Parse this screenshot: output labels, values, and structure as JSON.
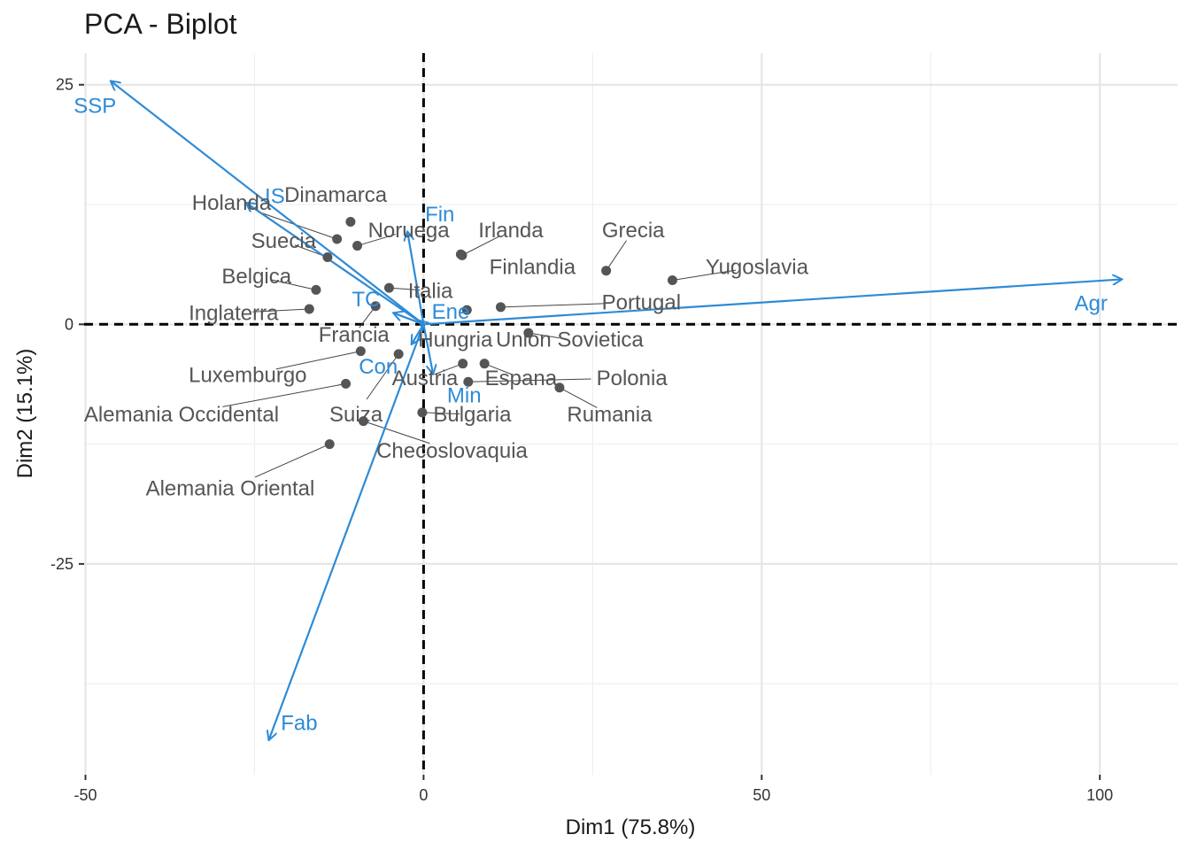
{
  "chart_data": {
    "type": "scatter",
    "title": "PCA - Biplot",
    "xlabel": "Dim1 (75.8%)",
    "ylabel": "Dim2 (15.1%)",
    "xlim": [
      -50.2,
      111.5
    ],
    "ylim": [
      -47.0,
      28.3
    ],
    "x_ticks": [
      -50,
      0,
      50,
      100
    ],
    "x_tick_labels": [
      "-50",
      "0",
      "50",
      "100"
    ],
    "y_ticks": [
      -25,
      0,
      25
    ],
    "y_tick_labels": [
      "-25",
      "0",
      "25"
    ],
    "grid": true,
    "reference_lines": {
      "x": 0,
      "y": 0,
      "style": "dashed"
    },
    "colors": {
      "individuals": "#555555",
      "variables": "#2E8BD6",
      "grid": "#e6e6e6"
    },
    "individuals": [
      {
        "name": "Dinamarca",
        "x": -10.8,
        "y": 10.7,
        "label_x": -13.0,
        "label_y": 13.5,
        "anchor": "middle"
      },
      {
        "name": "Noruega",
        "x": -9.8,
        "y": 8.2,
        "label_x": -2.2,
        "label_y": 9.8,
        "anchor": "middle"
      },
      {
        "name": "Irlanda",
        "x": 5.7,
        "y": 7.2,
        "label_x": 12.9,
        "label_y": 9.8,
        "anchor": "middle"
      },
      {
        "name": "Grecia",
        "x": 27.0,
        "y": 5.6,
        "label_x": 31.0,
        "label_y": 9.8,
        "anchor": "middle"
      },
      {
        "name": "Holanda",
        "x": -12.8,
        "y": 8.9,
        "label_x": -28.4,
        "label_y": 12.7,
        "anchor": "middle"
      },
      {
        "name": "Suecia",
        "x": -14.2,
        "y": 7.0,
        "label_x": -20.7,
        "label_y": 8.7,
        "anchor": "middle"
      },
      {
        "name": "Finlandia",
        "x": null,
        "y": null,
        "label_x": 16.1,
        "label_y": 6.0,
        "anchor": "middle"
      },
      {
        "name": "Yugoslavia",
        "x": 36.8,
        "y": 4.6,
        "label_x": 49.3,
        "label_y": 6.0,
        "anchor": "middle"
      },
      {
        "name": "Belgica",
        "x": -15.9,
        "y": 3.6,
        "label_x": -24.7,
        "label_y": 5.0,
        "anchor": "middle"
      },
      {
        "name": "Italia",
        "x": -5.1,
        "y": 3.8,
        "label_x": 1.0,
        "label_y": 3.5,
        "anchor": "middle"
      },
      {
        "name": "Portugal",
        "x": 11.4,
        "y": 1.8,
        "label_x": 32.2,
        "label_y": 2.3,
        "anchor": "middle"
      },
      {
        "name": "Inglaterra",
        "x": -16.9,
        "y": 1.6,
        "label_x": -28.1,
        "label_y": 1.2,
        "anchor": "middle"
      },
      {
        "name": "Francia",
        "x": -7.1,
        "y": 1.9,
        "label_x": -10.3,
        "label_y": -1.1,
        "anchor": "middle"
      },
      {
        "name": "Hungria",
        "x": 6.4,
        "y": 1.5,
        "label_x": 4.7,
        "label_y": -1.6,
        "anchor": "middle"
      },
      {
        "name": "Union Sovietica",
        "x": 15.5,
        "y": -0.9,
        "label_x": 21.6,
        "label_y": -1.6,
        "anchor": "middle"
      },
      {
        "name": "Luxemburgo",
        "x": -9.3,
        "y": -2.8,
        "label_x": -26.0,
        "label_y": -5.3,
        "anchor": "middle"
      },
      {
        "name": "Austria",
        "x": 5.8,
        "y": -4.1,
        "label_x": 0.2,
        "label_y": -5.6,
        "anchor": "middle"
      },
      {
        "name": "Espana",
        "x": 9.0,
        "y": -4.1,
        "label_x": 14.4,
        "label_y": -5.6,
        "anchor": "middle"
      },
      {
        "name": "Polonia",
        "x": 6.6,
        "y": -6.0,
        "label_x": 30.8,
        "label_y": -5.6,
        "anchor": "middle"
      },
      {
        "name": "Alemania Occidental",
        "x": -11.5,
        "y": -6.2,
        "label_x": -35.8,
        "label_y": -9.4,
        "anchor": "middle"
      },
      {
        "name": "Suiza",
        "x": -3.7,
        "y": -3.1,
        "label_x": -10.0,
        "label_y": -9.4,
        "anchor": "middle"
      },
      {
        "name": "Bulgaria",
        "x": -0.2,
        "y": -9.2,
        "label_x": 7.2,
        "label_y": -9.4,
        "anchor": "middle"
      },
      {
        "name": "Rumania",
        "x": 20.1,
        "y": -6.6,
        "label_x": 27.5,
        "label_y": -9.4,
        "anchor": "middle"
      },
      {
        "name": "Checoslovaquia",
        "x": -8.9,
        "y": -10.1,
        "label_x": 4.2,
        "label_y": -13.2,
        "anchor": "middle"
      },
      {
        "name": "Alemania Oriental",
        "x": -13.9,
        "y": -12.5,
        "label_x": -28.6,
        "label_y": -17.1,
        "anchor": "middle"
      }
    ],
    "extra_points": [
      {
        "x": 5.5,
        "y": 7.3
      }
    ],
    "variables": [
      {
        "name": "SSP",
        "x": -46.3,
        "y": 25.4,
        "label_x": -48.6,
        "label_y": 22.8,
        "anchor": "middle"
      },
      {
        "name": "IS",
        "x": -26.3,
        "y": 12.7,
        "label_x": -22.0,
        "label_y": 13.4,
        "anchor": "middle"
      },
      {
        "name": "Fin",
        "x": -2.4,
        "y": 9.7,
        "label_x": 2.4,
        "label_y": 11.5,
        "anchor": "middle"
      },
      {
        "name": "Agr",
        "x": 103.3,
        "y": 4.7,
        "label_x": 98.7,
        "label_y": 2.2,
        "anchor": "middle"
      },
      {
        "name": "TC",
        "x": -4.5,
        "y": 1.2,
        "label_x": -8.5,
        "label_y": 2.6,
        "anchor": "middle"
      },
      {
        "name": "Ene",
        "x": -0.6,
        "y": 0.4,
        "label_x": 4.0,
        "label_y": 1.3,
        "anchor": "middle"
      },
      {
        "name": "Con",
        "x": -1.8,
        "y": -2.1,
        "label_x": -6.7,
        "label_y": -4.4,
        "anchor": "middle"
      },
      {
        "name": "Min",
        "x": 1.4,
        "y": -5.2,
        "label_x": 6.0,
        "label_y": -7.4,
        "anchor": "middle"
      },
      {
        "name": "Fab",
        "x": -22.9,
        "y": -43.4,
        "label_x": -18.4,
        "label_y": -41.6,
        "anchor": "middle"
      }
    ]
  }
}
